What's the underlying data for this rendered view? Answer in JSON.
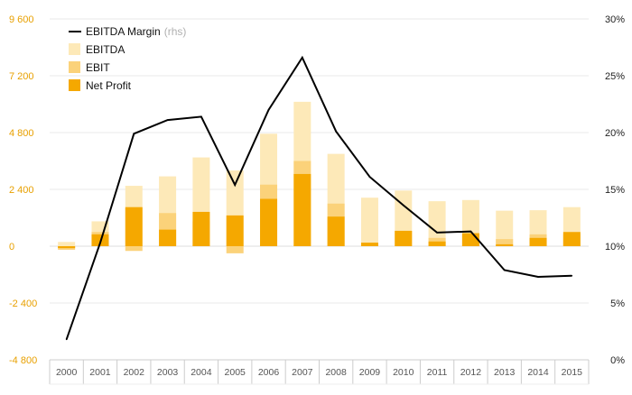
{
  "chart_data": {
    "type": "bar",
    "categories": [
      "2000",
      "2001",
      "2002",
      "2003",
      "2004",
      "2005",
      "2006",
      "2007",
      "2008",
      "2009",
      "2010",
      "2011",
      "2012",
      "2013",
      "2014",
      "2015"
    ],
    "series": [
      {
        "name": "EBITDA",
        "type": "bar",
        "axis": "left",
        "color": "#fde9b8",
        "values": [
          180,
          1050,
          2550,
          2950,
          3750,
          3200,
          4750,
          6100,
          3900,
          2050,
          2350,
          1900,
          1950,
          1500,
          1520,
          1650
        ]
      },
      {
        "name": "EBIT",
        "type": "bar",
        "axis": "left",
        "color": "#fbd27a",
        "values": [
          -150,
          600,
          -200,
          1400,
          1050,
          -300,
          2600,
          3600,
          1800,
          100,
          650,
          350,
          500,
          300,
          500,
          500
        ]
      },
      {
        "name": "Net Profit",
        "type": "bar",
        "axis": "left",
        "color": "#f5a800",
        "values": [
          -80,
          500,
          1650,
          700,
          1450,
          1300,
          2000,
          3050,
          1250,
          150,
          650,
          200,
          550,
          80,
          350,
          600
        ]
      },
      {
        "name": "EBITDA Margin",
        "name_suffix": "(rhs)",
        "type": "line",
        "axis": "right",
        "color": "#000000",
        "values": [
          1.8,
          10.3,
          19.9,
          21.1,
          21.4,
          15.4,
          22.0,
          26.6,
          20.1,
          16.1,
          13.6,
          11.2,
          11.3,
          7.9,
          7.3,
          7.4
        ]
      }
    ],
    "yaxis_left": {
      "min": -4800,
      "max": 9600,
      "ticks": [
        -4800,
        -2400,
        0,
        2400,
        4800,
        7200,
        9600
      ],
      "tick_labels": [
        "-4 800",
        "-2 400",
        "0",
        "2 400",
        "4 800",
        "7 200",
        "9 600"
      ]
    },
    "yaxis_right": {
      "min": 0,
      "max": 30,
      "ticks": [
        0,
        5,
        10,
        15,
        20,
        25,
        30
      ],
      "tick_labels": [
        "0%",
        "5%",
        "10%",
        "15%",
        "20%",
        "25%",
        "30%"
      ]
    },
    "grid": true,
    "legend": {
      "position": "top-left"
    },
    "colors": {
      "left_axis_text": "#e8a000",
      "grid": "#e9e9e9",
      "axis": "#cccccc"
    }
  }
}
